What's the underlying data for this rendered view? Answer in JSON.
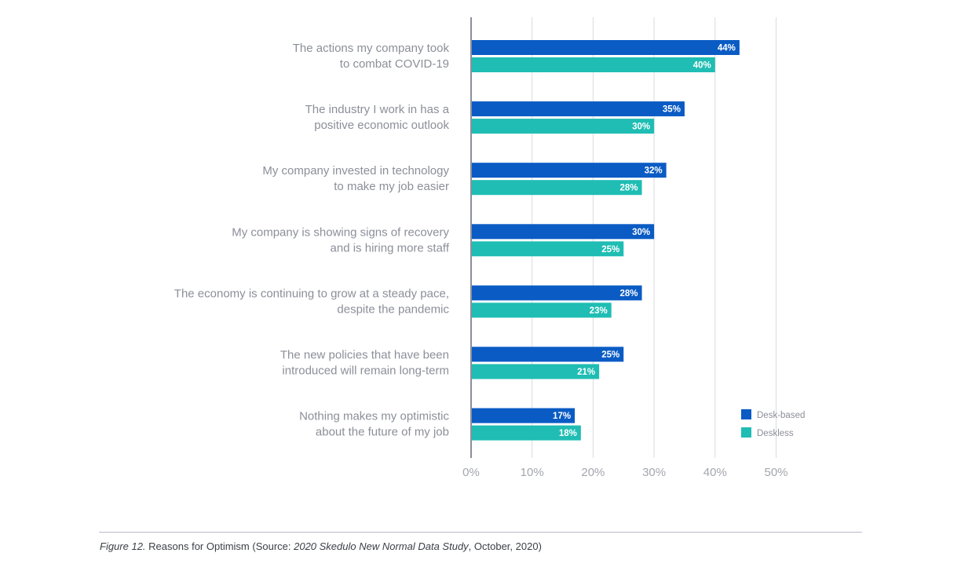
{
  "chart_data": {
    "type": "bar",
    "orientation": "horizontal",
    "categories": [
      [
        "The actions my company took",
        "to combat COVID-19"
      ],
      [
        "The industry I work in has a",
        "positive economic outlook"
      ],
      [
        "My company invested in technology",
        "to make my job easier"
      ],
      [
        "My company is showing signs of recovery",
        "and is hiring more staff"
      ],
      [
        "The economy is continuing to grow at a steady pace,",
        "despite the pandemic"
      ],
      [
        "The new policies that have been",
        "introduced will remain long-term"
      ],
      [
        "Nothing makes my optimistic",
        "about the future of my job"
      ]
    ],
    "series": [
      {
        "name": "Desk-based",
        "color": "#0a5bc4",
        "values": [
          44,
          35,
          32,
          30,
          28,
          25,
          17
        ]
      },
      {
        "name": "Deskless",
        "color": "#1fbdb3",
        "values": [
          40,
          30,
          28,
          25,
          23,
          21,
          18
        ]
      }
    ],
    "value_suffix": "%",
    "xlim": [
      0,
      50
    ],
    "xticks": [
      0,
      10,
      20,
      30,
      40,
      50
    ],
    "tick_labels": [
      "0%",
      "10%",
      "20%",
      "30%",
      "40%",
      "50%"
    ],
    "grid": true,
    "legend_position": "bottom-right",
    "title": "",
    "xlabel": "",
    "ylabel": ""
  },
  "caption": {
    "figure_label": "Figure 12.",
    "text_before": " Reasons for Optimism (Source: ",
    "source_title": "2020 Skedulo New Normal Data Study",
    "text_after": ", October, 2020)"
  }
}
